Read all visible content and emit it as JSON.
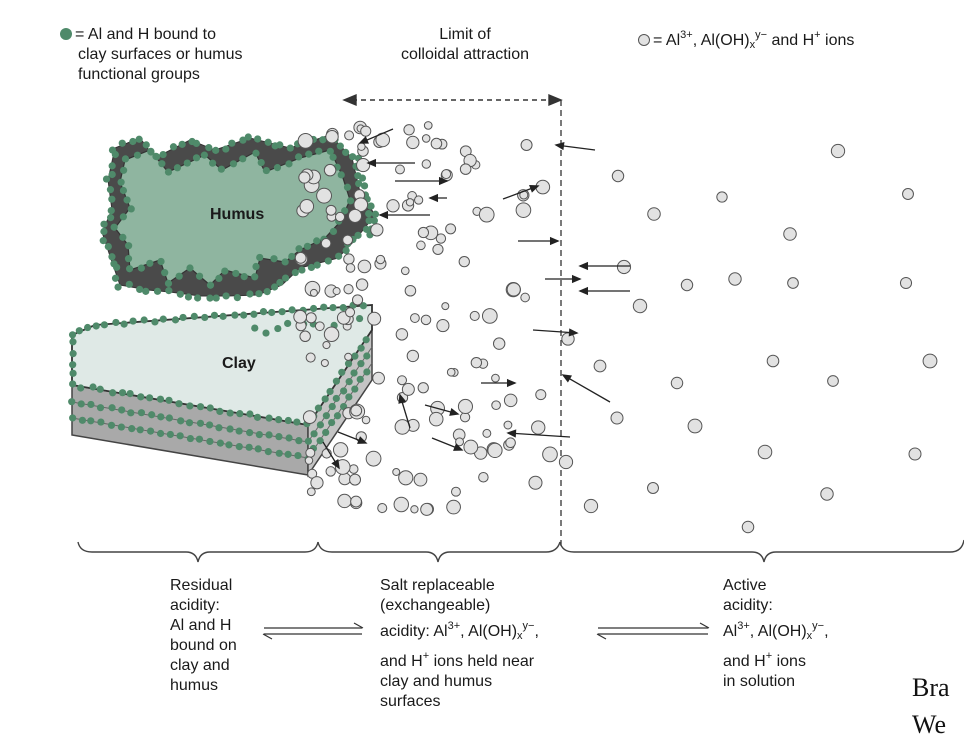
{
  "legend": {
    "bound": {
      "symbol_color": "#4f8a6a",
      "line1": "= Al and H bound to",
      "line2": "clay surfaces or humus",
      "line3": "functional groups"
    },
    "ions": {
      "symbol_color": "#d8d8d8",
      "prefix": "= Al",
      "sup1": "3+",
      "mid1": ", Al(OH)",
      "sub1": "x",
      "sup2": "y−",
      "mid2": " and H",
      "sup3": "+",
      "suffix": " ions"
    }
  },
  "limit": {
    "line1": "Limit of",
    "line2": "colloidal attraction"
  },
  "labels": {
    "humus": "Humus",
    "clay": "Clay"
  },
  "zones": {
    "residual": [
      "Residual",
      "acidity:",
      "Al and H",
      "bound on",
      "clay and",
      "humus"
    ],
    "exchangeable": {
      "line1": "Salt replaceable",
      "line2": "(exchangeable)",
      "line3_prefix": "acidity: Al",
      "line3_sup1": "3+",
      "line3_mid": ", Al(OH)",
      "line3_sub": "x",
      "line3_sup2": "y−",
      "line3_suffix": ",",
      "line4_prefix": "and H",
      "line4_sup": "+",
      "line4_suffix": " ions held near",
      "line5": "clay and humus",
      "line6": "surfaces"
    },
    "active": {
      "line1": "Active",
      "line2": "acidity:",
      "line3_prefix": "Al",
      "line3_sup1": "3+",
      "line3_mid": ", Al(OH)",
      "line3_sub": "x",
      "line3_sup2": "y−",
      "line3_suffix": ",",
      "line4_prefix": "and H",
      "line4_sup": "+",
      "line4_suffix": " ions",
      "line5": "in solution"
    }
  },
  "corner_text": {
    "line1": "Bra",
    "line2": "We"
  },
  "colors": {
    "humus_fill": "#8fb5a0",
    "humus_edge": "#4a4a4a",
    "clay_top": "#dfe9e6",
    "clay_side": "#b8b8b8",
    "bound_dot": "#4f8a6a",
    "ion_fill": "#e2e2e2",
    "ion_stroke": "#555555"
  }
}
